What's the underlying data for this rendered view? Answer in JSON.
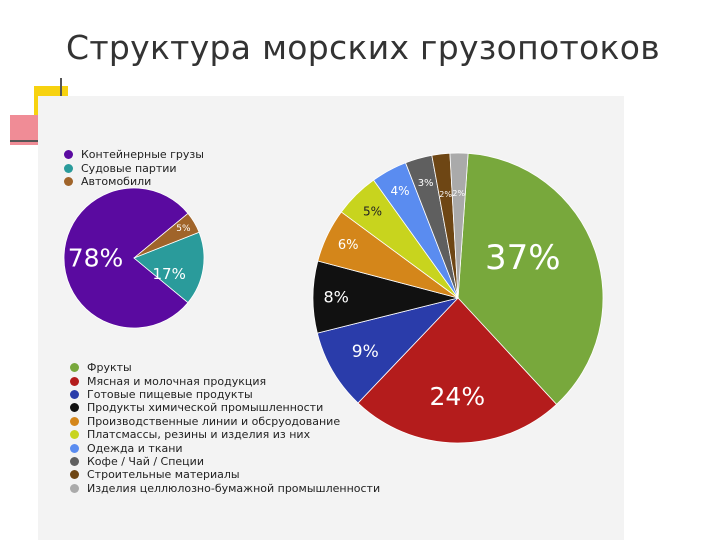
{
  "title": "Структура морских грузопотоков",
  "chart_data": [
    {
      "type": "pie",
      "labels": [
        "Контейнерные грузы",
        "Судовые партии",
        "Автомобили"
      ],
      "values": [
        78,
        17,
        5
      ],
      "value_labels": [
        "78%",
        "17%",
        "5%"
      ],
      "colors": [
        "#5a0aa0",
        "#2a9b9b",
        "#a0642a"
      ],
      "legend_position": "top-left"
    },
    {
      "type": "pie",
      "labels": [
        "Фрукты",
        "Мясная и молочная продукция",
        "Готовые пищевые продукты",
        "Продукты химической промышленности",
        "Производственные линии и обсруодование",
        "Платсмассы, резины и изделия из них",
        "Одежда и ткани",
        "Кофе / Чай / Специи",
        "Строительные материалы",
        "Изделия целлюлозно-бумажной промышленности"
      ],
      "values": [
        37,
        24,
        9,
        8,
        6,
        5,
        4,
        3,
        2,
        2
      ],
      "value_labels": [
        "37%",
        "24%",
        "9%",
        "8%",
        "6%",
        "5%",
        "4%",
        "3%",
        "2%",
        "2%"
      ],
      "colors": [
        "#78a83c",
        "#b41c1c",
        "#2a3caa",
        "#111111",
        "#d4861a",
        "#c8d41e",
        "#5a8cf0",
        "#5f5f5f",
        "#6e4614",
        "#aaaaaa"
      ],
      "legend_position": "bottom-left"
    }
  ]
}
